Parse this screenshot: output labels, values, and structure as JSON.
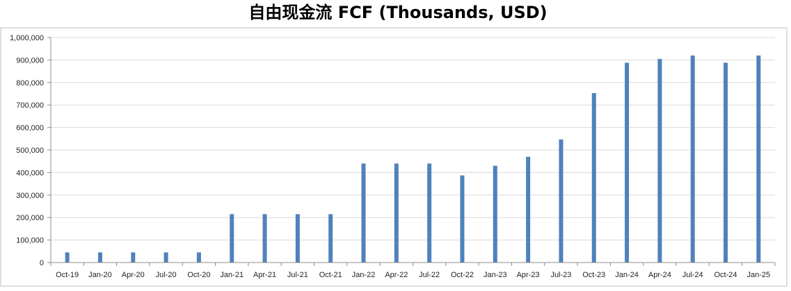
{
  "chart_data": {
    "type": "bar",
    "title": "自由现金流 FCF (Thousands, USD)",
    "xlabel": "",
    "ylabel": "",
    "categories": [
      "Oct-19",
      "Jan-20",
      "Apr-20",
      "Jul-20",
      "Oct-20",
      "Jan-21",
      "Apr-21",
      "Jul-21",
      "Oct-21",
      "Jan-22",
      "Apr-22",
      "Jul-22",
      "Oct-22",
      "Jan-23",
      "Apr-23",
      "Jul-23",
      "Oct-23",
      "Jan-24",
      "Apr-24",
      "Jul-24",
      "Oct-24",
      "Jan-25"
    ],
    "values": [
      45000,
      45000,
      45000,
      45000,
      45000,
      215000,
      215000,
      215000,
      215000,
      440000,
      440000,
      440000,
      387000,
      430000,
      470000,
      547000,
      753000,
      888000,
      905000,
      920000,
      888000,
      920000
    ],
    "ylim": [
      0,
      1000000
    ],
    "yticks": [
      0,
      100000,
      200000,
      300000,
      400000,
      500000,
      600000,
      700000,
      800000,
      900000,
      1000000
    ],
    "ytick_labels": [
      "0",
      "100,000",
      "200,000",
      "300,000",
      "400,000",
      "500,000",
      "600,000",
      "700,000",
      "800,000",
      "900,000",
      "1,000,000"
    ],
    "grid": true,
    "legend": "none",
    "bar_color": "#4f81bd"
  }
}
